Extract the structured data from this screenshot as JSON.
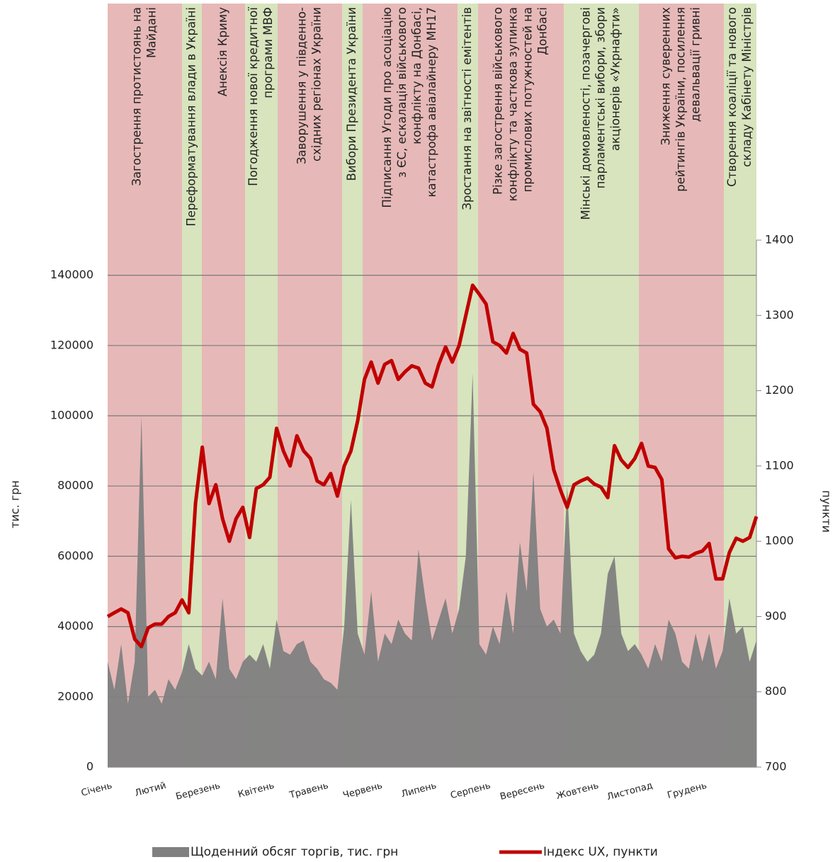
{
  "chart_data": {
    "type": "combo",
    "ylabel": "тис. грн",
    "y2label": "пункти",
    "xlim": [
      0,
      12
    ],
    "xticks": [
      {
        "value": 0,
        "label": "Січень"
      },
      {
        "value": 1,
        "label": "Лютий"
      },
      {
        "value": 2,
        "label": "Березень"
      },
      {
        "value": 3,
        "label": "Квітень"
      },
      {
        "value": 4,
        "label": "Травень"
      },
      {
        "value": 5,
        "label": "Червень"
      },
      {
        "value": 6,
        "label": "Липень"
      },
      {
        "value": 7,
        "label": "Серпень"
      },
      {
        "value": 8,
        "label": "Вересень"
      },
      {
        "value": 9,
        "label": "Жовтень"
      },
      {
        "value": 10,
        "label": "Листопад"
      },
      {
        "value": 11,
        "label": "Грудень"
      }
    ],
    "ylim": [
      0,
      150000
    ],
    "yticks": [
      0,
      20000,
      40000,
      60000,
      80000,
      100000,
      120000,
      140000
    ],
    "y2lim": [
      700,
      1400
    ],
    "y2ticks": [
      700,
      800,
      900,
      1000,
      1100,
      1200,
      1300,
      1400
    ],
    "grid": true,
    "legend": "bottom",
    "events": [
      {
        "start": 0,
        "end": 1.376,
        "color": "#e6b9b8",
        "label": [
          "Загострення протистоянь на",
          "Майдані"
        ]
      },
      {
        "start": 1.376,
        "end": 1.742,
        "color": "#d7e4bd",
        "label": [
          "Переформатування влади в Україні"
        ]
      },
      {
        "start": 1.742,
        "end": 2.542,
        "color": "#e6b9b8",
        "label": [
          "Анексія Криму"
        ]
      },
      {
        "start": 2.542,
        "end": 3.144,
        "color": "#d7e4bd",
        "label": [
          "Погодження нової кредитної",
          "програми МВФ"
        ]
      },
      {
        "start": 3.144,
        "end": 4.337,
        "color": "#e6b9b8",
        "label": [
          "Заворушення у південно-",
          "східних регіонах України"
        ]
      },
      {
        "start": 4.337,
        "end": 4.716,
        "color": "#d7e4bd",
        "label": [
          "Вибори Президента України"
        ]
      },
      {
        "start": 4.716,
        "end": 6.472,
        "color": "#e6b9b8",
        "label": [
          "Підписання Угоди про асоціацію",
          "з ЄС, ескалація військового",
          "конфлікту на Донбасі,",
          "катастрофа авіалайнеру MH17"
        ]
      },
      {
        "start": 6.472,
        "end": 6.852,
        "color": "#d7e4bd",
        "label": [
          "Зростання на звітності емітентів"
        ]
      },
      {
        "start": 6.852,
        "end": 8.437,
        "color": "#e6b9b8",
        "label": [
          "Різке загострення військового",
          "конфлікту та часткова зупинка",
          "промислових потужностей на",
          "Донбасі"
        ]
      },
      {
        "start": 8.437,
        "end": 9.826,
        "color": "#d7e4bd",
        "label": [
          "Мінські домовленості, позачергові",
          "парламентські вибори, збори",
          "акціонерів «Укрнафти»"
        ]
      },
      {
        "start": 9.826,
        "end": 11.398,
        "color": "#e6b9b8",
        "label": [
          "Зниження суверенних",
          "рейтингів України, посилення",
          "девальвації гривні"
        ]
      },
      {
        "start": 11.398,
        "end": 12,
        "color": "#d7e4bd",
        "label": [
          "Створення коаліції та нового",
          "складу Кабінету Міністрів"
        ]
      }
    ],
    "x": [
      0,
      0.125,
      0.25,
      0.375,
      0.5,
      0.625,
      0.75,
      0.875,
      1,
      1.125,
      1.25,
      1.375,
      1.5,
      1.625,
      1.75,
      1.875,
      2,
      2.125,
      2.25,
      2.375,
      2.5,
      2.625,
      2.75,
      2.875,
      3,
      3.125,
      3.25,
      3.375,
      3.5,
      3.625,
      3.75,
      3.875,
      4,
      4.125,
      4.25,
      4.375,
      4.5,
      4.625,
      4.75,
      4.875,
      5,
      5.125,
      5.25,
      5.375,
      5.5,
      5.625,
      5.75,
      5.875,
      6,
      6.125,
      6.25,
      6.375,
      6.5,
      6.625,
      6.75,
      6.875,
      7,
      7.125,
      7.25,
      7.375,
      7.5,
      7.625,
      7.75,
      7.875,
      8,
      8.125,
      8.25,
      8.375,
      8.5,
      8.625,
      8.75,
      8.875,
      9,
      9.125,
      9.25,
      9.375,
      9.5,
      9.625,
      9.75,
      9.875,
      10,
      10.125,
      10.25,
      10.375,
      10.5,
      10.625,
      10.75,
      10.875,
      11,
      11.125,
      11.25,
      11.375,
      11.5,
      11.625,
      11.75,
      11.875,
      12
    ],
    "series": [
      {
        "name": "Щоденний обсяг торгів, тис. грн",
        "type": "area",
        "color": "#808080",
        "values": [
          30000,
          22000,
          35000,
          18000,
          30000,
          100000,
          20000,
          22000,
          18000,
          25000,
          22000,
          27000,
          35000,
          28000,
          26000,
          30000,
          25000,
          48000,
          28000,
          25000,
          30000,
          32000,
          30000,
          35000,
          28000,
          42000,
          33000,
          32000,
          35000,
          36000,
          30000,
          28000,
          25000,
          24000,
          22000,
          40000,
          76000,
          38000,
          32000,
          50000,
          30000,
          38000,
          35000,
          42000,
          38000,
          36000,
          62000,
          48000,
          36000,
          42000,
          48000,
          38000,
          45000,
          60000,
          112000,
          35000,
          32000,
          40000,
          35000,
          50000,
          38000,
          64000,
          50000,
          84000,
          45000,
          40000,
          42000,
          38000,
          80000,
          38000,
          33000,
          30000,
          32000,
          38000,
          55000,
          60000,
          38000,
          33000,
          35000,
          32000,
          28000,
          35000,
          30000,
          42000,
          38000,
          30000,
          28000,
          38000,
          30000,
          38000,
          28000,
          33000,
          48000,
          38000,
          40000,
          30000,
          36000
        ]
      },
      {
        "name": "Індекс UX, пункти",
        "type": "line",
        "axis": "y2",
        "color": "#c00000",
        "values": [
          900,
          905,
          910,
          905,
          870,
          860,
          885,
          890,
          890,
          900,
          905,
          922,
          905,
          1050,
          1125,
          1050,
          1075,
          1030,
          1000,
          1030,
          1045,
          1005,
          1070,
          1075,
          1085,
          1150,
          1120,
          1100,
          1140,
          1120,
          1110,
          1080,
          1075,
          1090,
          1060,
          1100,
          1120,
          1160,
          1215,
          1238,
          1210,
          1235,
          1240,
          1215,
          1225,
          1233,
          1230,
          1210,
          1205,
          1235,
          1258,
          1238,
          1260,
          1300,
          1340,
          1328,
          1315,
          1265,
          1260,
          1250,
          1276,
          1255,
          1250,
          1182,
          1172,
          1150,
          1095,
          1068,
          1045,
          1075,
          1080,
          1084,
          1076,
          1072,
          1058,
          1127,
          1108,
          1098,
          1110,
          1130,
          1100,
          1098,
          1082,
          990,
          978,
          980,
          979,
          984,
          987,
          997,
          950,
          950,
          985,
          1004,
          1000,
          1005,
          1033
        ]
      }
    ]
  }
}
